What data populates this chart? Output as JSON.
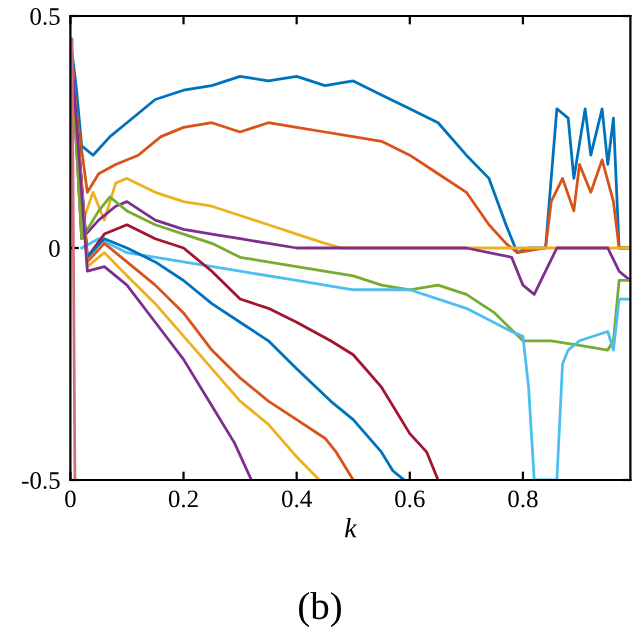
{
  "chart_data": {
    "type": "line",
    "xlabel": "k",
    "annotations": [
      "(b)"
    ],
    "xlim": [
      0,
      0.99
    ],
    "ylim": [
      -0.5,
      0.5
    ],
    "xticks": [
      0,
      0.2,
      0.4,
      0.6,
      0.8
    ],
    "yticks": [
      {
        "value": 0.5,
        "label": "0.5"
      },
      0,
      {
        "value": -0.5,
        "label": "-0.5"
      }
    ],
    "grid": false,
    "legend": false,
    "marker": "none",
    "line_style": "solid",
    "series": [
      {
        "color": "#0072bd",
        "x": [
          0,
          0.01,
          0.02,
          0.04,
          0.07,
          0.1,
          0.15,
          0.2,
          0.25,
          0.3,
          0.35,
          0.4,
          0.45,
          0.5,
          0.55,
          0.6,
          0.65,
          0.7,
          0.74,
          0.77,
          0.79,
          0.81,
          0.84,
          0.85,
          0.86,
          0.88,
          0.89,
          0.91,
          0.92,
          0.94,
          0.95,
          0.96,
          0.97,
          0.99
        ],
        "values": [
          0.45,
          0.35,
          0.22,
          0.2,
          0.24,
          0.27,
          0.32,
          0.34,
          0.35,
          0.37,
          0.36,
          0.37,
          0.35,
          0.36,
          0.33,
          0.3,
          0.27,
          0.2,
          0.15,
          0.05,
          -0.01,
          0,
          0,
          0.15,
          0.3,
          0.28,
          0.15,
          0.3,
          0.2,
          0.3,
          0.18,
          0.28,
          0,
          0
        ]
      },
      {
        "color": "#d95319",
        "x": [
          0,
          0.01,
          0.03,
          0.05,
          0.08,
          0.12,
          0.16,
          0.2,
          0.25,
          0.3,
          0.35,
          0.4,
          0.45,
          0.5,
          0.55,
          0.6,
          0.65,
          0.7,
          0.74,
          0.77,
          0.79,
          0.84,
          0.85,
          0.87,
          0.89,
          0.9,
          0.92,
          0.94,
          0.96,
          0.97,
          0.99
        ],
        "values": [
          0.45,
          0.3,
          0.12,
          0.16,
          0.18,
          0.2,
          0.24,
          0.26,
          0.27,
          0.25,
          0.27,
          0.26,
          0.25,
          0.24,
          0.23,
          0.2,
          0.16,
          0.12,
          0.05,
          0.01,
          -0.01,
          0,
          0.1,
          0.15,
          0.08,
          0.18,
          0.12,
          0.19,
          0.1,
          0,
          0
        ]
      },
      {
        "color": "#edb120",
        "x": [
          0,
          0.02,
          0.04,
          0.06,
          0.08,
          0.1,
          0.15,
          0.2,
          0.25,
          0.3,
          0.35,
          0.4,
          0.45,
          0.48,
          0.6,
          0.7,
          0.8,
          0.9,
          0.99
        ],
        "values": [
          0.45,
          0.05,
          0.12,
          0.06,
          0.14,
          0.15,
          0.12,
          0.1,
          0.09,
          0.07,
          0.05,
          0.03,
          0.01,
          0,
          0,
          0,
          0,
          0,
          0
        ]
      },
      {
        "color": "#7e2f8e",
        "x": [
          0,
          0.02,
          0.05,
          0.08,
          0.1,
          0.15,
          0.2,
          0.25,
          0.3,
          0.35,
          0.4,
          0.5,
          0.6,
          0.7,
          0.78,
          0.8,
          0.82,
          0.84,
          0.86,
          0.9,
          0.95,
          0.97,
          0.99
        ],
        "values": [
          0.45,
          0.02,
          0.06,
          0.09,
          0.1,
          0.06,
          0.04,
          0.03,
          0.02,
          0.01,
          0,
          0,
          0,
          0,
          -0.02,
          -0.08,
          -0.1,
          -0.05,
          0,
          0,
          0,
          -0.05,
          -0.07
        ]
      },
      {
        "color": "#77ac30",
        "x": [
          0,
          0.02,
          0.05,
          0.07,
          0.1,
          0.15,
          0.2,
          0.25,
          0.3,
          0.4,
          0.5,
          0.55,
          0.6,
          0.65,
          0.7,
          0.75,
          0.8,
          0.85,
          0.9,
          0.95,
          0.96,
          0.97,
          0.99
        ],
        "values": [
          0.45,
          0.02,
          0.08,
          0.11,
          0.08,
          0.05,
          0.03,
          0.01,
          -0.02,
          -0.04,
          -0.06,
          -0.08,
          -0.09,
          -0.08,
          -0.1,
          -0.14,
          -0.2,
          -0.2,
          -0.21,
          -0.22,
          -0.2,
          -0.07,
          -0.07
        ]
      },
      {
        "color": "#4dbeee",
        "x": [
          0.02,
          0.05,
          0.1,
          0.2,
          0.3,
          0.4,
          0.5,
          0.6,
          0.7,
          0.78,
          0.8,
          0.81,
          0.82,
          0.86,
          0.87,
          0.88,
          0.9,
          0.95,
          0.96,
          0.97,
          0.99
        ],
        "values": [
          0,
          0.02,
          -0.01,
          -0.03,
          -0.05,
          -0.07,
          -0.09,
          -0.09,
          -0.13,
          -0.18,
          -0.19,
          -0.3,
          -0.5,
          -0.5,
          -0.25,
          -0.22,
          -0.2,
          -0.18,
          -0.22,
          -0.11,
          -0.11
        ]
      },
      {
        "color": "#a2142f",
        "x": [
          0,
          0.03,
          0.06,
          0.1,
          0.15,
          0.2,
          0.25,
          0.3,
          0.35,
          0.4,
          0.46,
          0.5,
          0.55,
          0.6,
          0.63,
          0.65
        ],
        "values": [
          0.45,
          -0.02,
          0.03,
          0.05,
          0.02,
          0,
          -0.05,
          -0.11,
          -0.13,
          -0.16,
          -0.2,
          -0.23,
          -0.3,
          -0.4,
          -0.44,
          -0.5
        ]
      },
      {
        "color": "#0072bd",
        "x": [
          0,
          0.03,
          0.06,
          0.1,
          0.15,
          0.2,
          0.25,
          0.3,
          0.35,
          0.4,
          0.46,
          0.5,
          0.55,
          0.57,
          0.59
        ],
        "values": [
          0.45,
          -0.02,
          0.02,
          0,
          -0.03,
          -0.07,
          -0.12,
          -0.16,
          -0.2,
          -0.26,
          -0.33,
          -0.37,
          -0.44,
          -0.48,
          -0.5
        ]
      },
      {
        "color": "#d95319",
        "x": [
          0,
          0.03,
          0.06,
          0.1,
          0.15,
          0.2,
          0.25,
          0.3,
          0.35,
          0.4,
          0.45,
          0.47,
          0.5
        ],
        "values": [
          0.45,
          -0.03,
          0.01,
          -0.03,
          -0.08,
          -0.14,
          -0.22,
          -0.28,
          -0.33,
          -0.37,
          -0.41,
          -0.44,
          -0.5
        ]
      },
      {
        "color": "#edb120",
        "x": [
          0,
          0.03,
          0.06,
          0.1,
          0.15,
          0.2,
          0.25,
          0.3,
          0.35,
          0.4,
          0.44
        ],
        "values": [
          0.45,
          -0.04,
          -0.01,
          -0.06,
          -0.12,
          -0.19,
          -0.26,
          -0.33,
          -0.38,
          -0.45,
          -0.5
        ]
      },
      {
        "color": "#7e2f8e",
        "x": [
          0,
          0.03,
          0.06,
          0.1,
          0.15,
          0.2,
          0.25,
          0.29,
          0.32
        ],
        "values": [
          0.45,
          -0.05,
          -0.04,
          -0.08,
          -0.16,
          -0.24,
          -0.34,
          -0.42,
          -0.5
        ]
      },
      {
        "color": "#d0707a",
        "x": [
          0.003,
          0.008
        ],
        "values": [
          0.45,
          -0.5
        ]
      }
    ]
  }
}
